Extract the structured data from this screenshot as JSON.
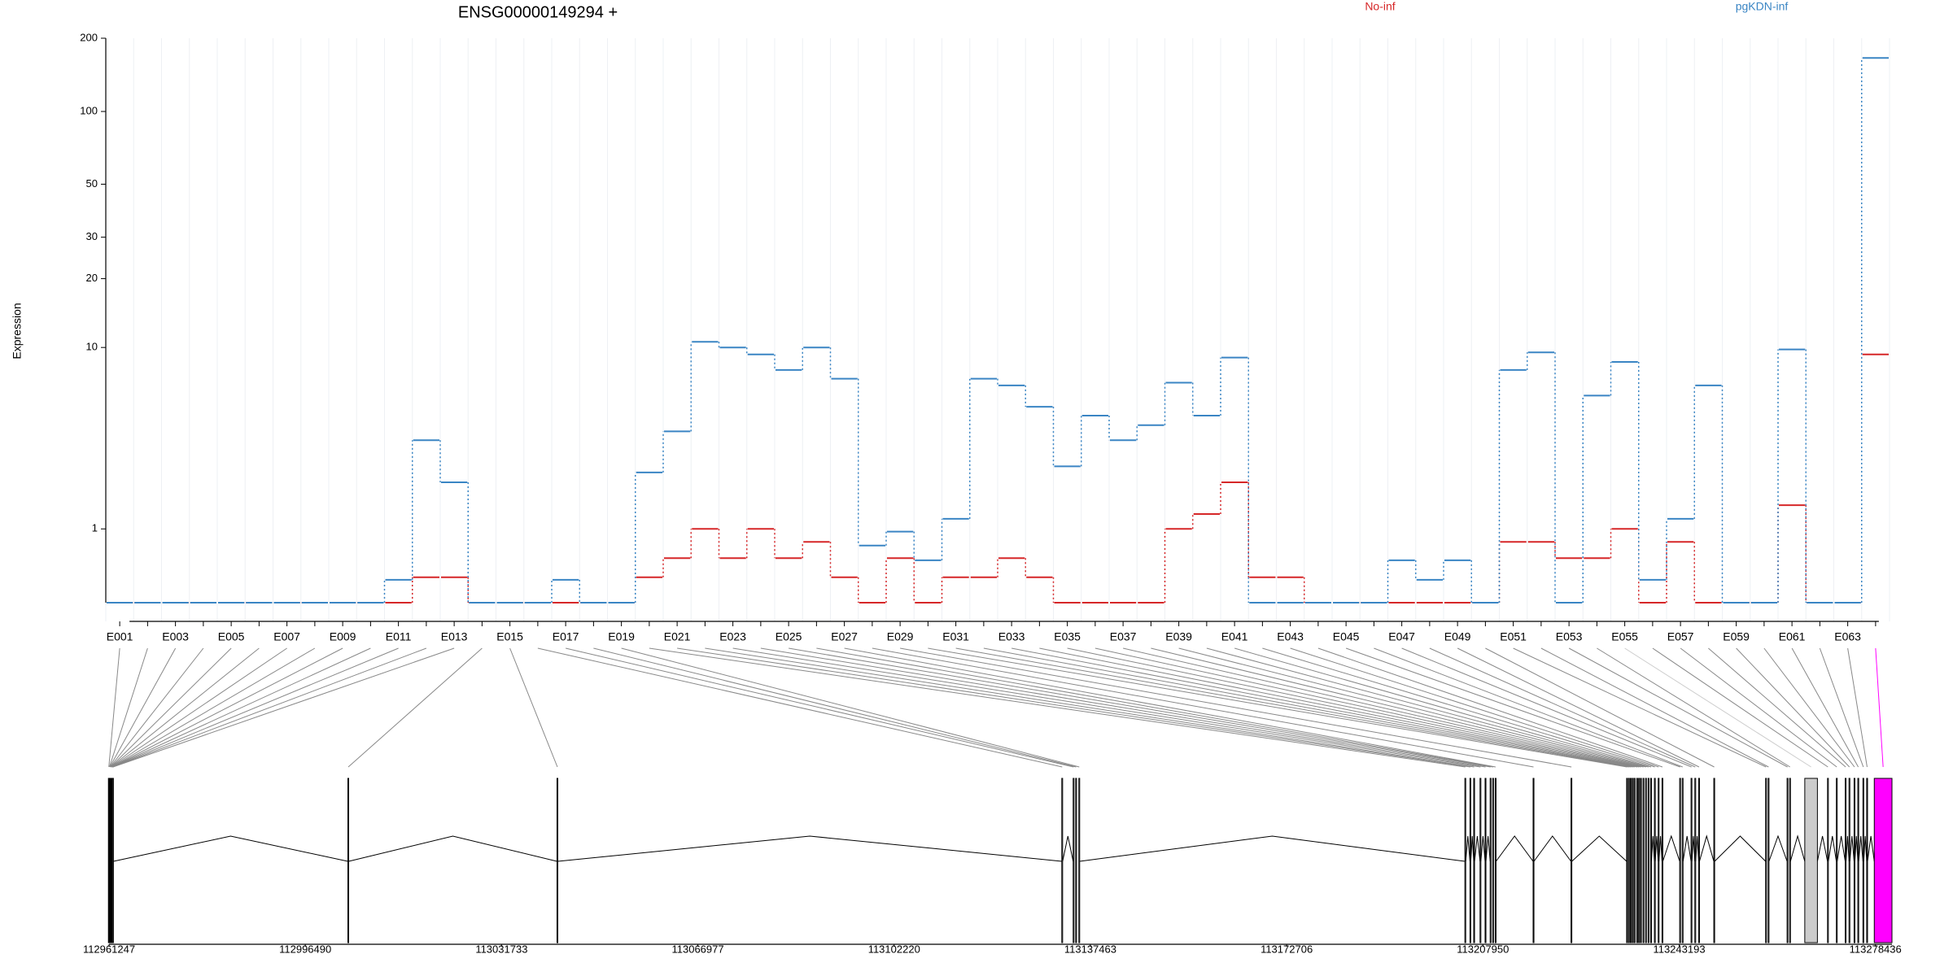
{
  "chart_data": [
    {
      "type": "step",
      "title": "ENSG00000149294 +",
      "y_label": "Expression",
      "categories": [
        "E001",
        null,
        "E003",
        null,
        "E005",
        null,
        "E007",
        null,
        "E009",
        null,
        "E011",
        null,
        "E013",
        null,
        "E015",
        null,
        "E017",
        null,
        "E019",
        null,
        "E021",
        null,
        "E023",
        null,
        "E025",
        null,
        "E027",
        null,
        "E029",
        null,
        "E031",
        null,
        "E033",
        null,
        "E035",
        null,
        "E037",
        null,
        "E039",
        null,
        "E041",
        null,
        "E043",
        null,
        "E045",
        null,
        "E047",
        null,
        "E049",
        null,
        "E051",
        null,
        "E053",
        null,
        "E055",
        null,
        "E057",
        null,
        "E059",
        null,
        "E061",
        null,
        "E063",
        null
      ],
      "series": [
        {
          "name": "No-inf",
          "color": "#d62728",
          "values": [
            0,
            0,
            0,
            0,
            0,
            0,
            0,
            0,
            0,
            0,
            0,
            0.27,
            0.27,
            0,
            0,
            0,
            0,
            0,
            0,
            0.27,
            0.52,
            1.0,
            0.52,
            1.0,
            0.52,
            0.77,
            0.27,
            0,
            0.52,
            0,
            0.27,
            0.27,
            0.52,
            0.27,
            0,
            0,
            0,
            0,
            1.0,
            1.3,
            2.1,
            0.27,
            0.27,
            0,
            0,
            0,
            0,
            0,
            0,
            0,
            0.77,
            0.77,
            0.52,
            0.52,
            1.0,
            0,
            0.77,
            0,
            0,
            0,
            1.5,
            0,
            0,
            9.3
          ]
        },
        {
          "name": "pgKDN-inf",
          "color": "#3a85c4",
          "values": [
            0,
            0,
            0,
            0,
            0,
            0,
            0,
            0,
            0,
            0,
            0.24,
            3.6,
            2.1,
            0,
            0,
            0,
            0.24,
            0,
            0,
            2.4,
            4.0,
            10.6,
            10,
            9.3,
            7.9,
            10,
            7.2,
            0.71,
            0.95,
            0.49,
            1.2,
            7.2,
            6.7,
            5.3,
            2.6,
            4.8,
            3.6,
            4.3,
            6.9,
            4.8,
            9.0,
            0,
            0,
            0,
            0,
            0,
            0.49,
            0.24,
            0.49,
            0,
            7.9,
            9.5,
            0,
            6.0,
            8.6,
            0.24,
            1.2,
            6.7,
            0,
            0,
            9.8,
            0,
            0,
            166
          ]
        }
      ],
      "ylim": [
        0,
        200
      ],
      "yticks": [
        1,
        10,
        20,
        30,
        50,
        100,
        200
      ],
      "yscale": "log1p",
      "grid": true,
      "legend": "top"
    },
    {
      "type": "gene-model",
      "exon_starts": [
        112961134,
        112961247,
        112961315,
        112961383,
        112961451,
        112961519,
        112961587,
        112961655,
        112961701,
        112961746,
        112961792,
        112961837,
        112961882,
        113004131,
        113041683,
        113132330,
        113134372,
        113134826,
        113135393,
        113204711,
        113205620,
        113206299,
        113207434,
        113208341,
        113209249,
        113209703,
        113210156,
        113216963,
        113223770,
        113233754,
        113234094,
        113234435,
        113234775,
        113235115,
        113235569,
        113235909,
        113236250,
        113236704,
        113237157,
        113237611,
        113238065,
        113238746,
        113239426,
        113240107,
        113243284,
        113243738,
        113245326,
        113246007,
        113246687,
        113249410,
        113258713,
        113259167,
        113262570,
        113263024,
        113265747,
        113269831,
        113271419,
        113273008,
        113273688,
        113274596,
        113275277,
        113276184,
        113276865,
        113278226
      ],
      "exon_ends": [
        112961284,
        112961397,
        112961465,
        112961533,
        112961601,
        112961669,
        112961737,
        112961805,
        112961851,
        112961896,
        112961942,
        112961987,
        112962032,
        113004281,
        113041833,
        113132480,
        113134522,
        113134976,
        113135543,
        113204861,
        113205770,
        113206449,
        113207584,
        113208491,
        113209399,
        113209853,
        113210306,
        113217113,
        113223920,
        113233904,
        113234244,
        113234585,
        113234925,
        113235265,
        113235719,
        113236059,
        113236400,
        113236854,
        113237307,
        113237761,
        113238215,
        113238896,
        113239576,
        113240257,
        113243434,
        113243888,
        113245476,
        113246157,
        113246837,
        113249560,
        113258863,
        113259317,
        113262720,
        113263174,
        113268016,
        113269981,
        113271569,
        113273158,
        113273838,
        113274746,
        113275427,
        113276334,
        113277015,
        113281403
      ],
      "exon_colors": [
        "#ffffff",
        "#ffffff",
        "#ffffff",
        "#ffffff",
        "#ffffff",
        "#ffffff",
        "#ffffff",
        "#ffffff",
        "#ffffff",
        "#ffffff",
        "#ffffff",
        "#ffffff",
        "#ffffff",
        "#ffffff",
        "#ffffff",
        "#ffffff",
        "#ffffff",
        "#ffffff",
        "#ffffff",
        "#ffffff",
        "#ffffff",
        "#ffffff",
        "#ffffff",
        "#ffffff",
        "#ffffff",
        "#ffffff",
        "#ffffff",
        "#ffffff",
        "#ffffff",
        "#ffffff",
        "#ffffff",
        "#ffffff",
        "#ffffff",
        "#ffffff",
        "#ffffff",
        "#ffffff",
        "#ffffff",
        "#ffffff",
        "#ffffff",
        "#ffffff",
        "#ffffff",
        "#ffffff",
        "#ffffff",
        "#ffffff",
        "#ffffff",
        "#ffffff",
        "#ffffff",
        "#ffffff",
        "#ffffff",
        "#ffffff",
        "#ffffff",
        "#ffffff",
        "#ffffff",
        "#ffffff",
        "#cccccc",
        "#ffffff",
        "#ffffff",
        "#ffffff",
        "#ffffff",
        "#ffffff",
        "#ffffff",
        "#ffffff",
        "#ffffff",
        "#ff00ff"
      ],
      "xlim": [
        112961247,
        113281403
      ],
      "xticks": [
        112961247,
        112996490,
        113031733,
        113066977,
        113102220,
        113137463,
        113172706,
        113207950,
        113243193,
        113278436
      ]
    }
  ]
}
